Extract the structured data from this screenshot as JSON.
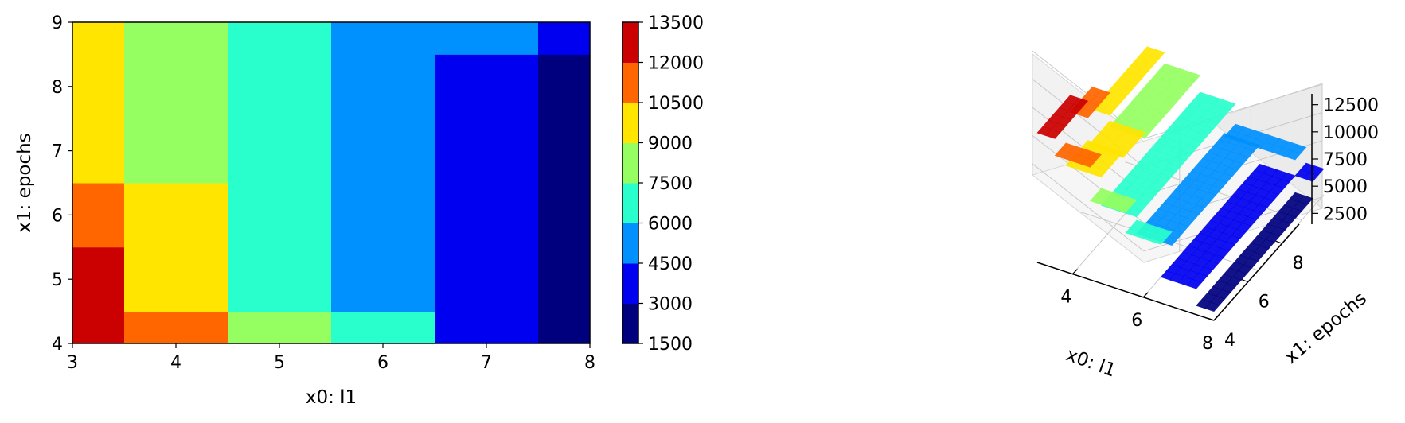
{
  "chart_data": [
    {
      "type": "heatmap",
      "subtype": "filled-contour",
      "title": "",
      "xlabel": "x0: l1",
      "ylabel": "x1: epochs",
      "xlim": [
        3,
        8
      ],
      "ylim": [
        4,
        9
      ],
      "xticks": [
        "3",
        "4",
        "5",
        "6",
        "7",
        "8"
      ],
      "yticks": [
        "4",
        "5",
        "6",
        "7",
        "8",
        "9"
      ],
      "colormap": "jet",
      "levels": [
        1500,
        3000,
        4500,
        6000,
        7500,
        9000,
        10500,
        12000,
        13500
      ],
      "level_colors": [
        "#00007f",
        "#0000f1",
        "#0091ff",
        "#29ffcd",
        "#95ff62",
        "#ffe500",
        "#ff6600",
        "#cb0000"
      ],
      "colorbar_ticks": [
        "1500",
        "3000",
        "4500",
        "6000",
        "7500",
        "9000",
        "10500",
        "12000",
        "13500"
      ],
      "x_grid": [
        3,
        4,
        5,
        6,
        7,
        8
      ],
      "y_grid": [
        4,
        5,
        6,
        7,
        8,
        9
      ],
      "z": [
        [
          13000,
          11500,
          8500,
          6700,
          3800,
          2300
        ],
        [
          13000,
          9500,
          7000,
          5500,
          3800,
          2300
        ],
        [
          11500,
          9000,
          7000,
          5500,
          3800,
          2300
        ],
        [
          9500,
          8500,
          7000,
          5500,
          3800,
          2300
        ],
        [
          9500,
          8500,
          7000,
          5500,
          3800,
          2300
        ],
        [
          9500,
          8500,
          7000,
          5200,
          5200,
          3800
        ]
      ]
    },
    {
      "type": "surface3d",
      "title": "",
      "xlabel": "x0: l1",
      "ylabel": "x1: epochs",
      "xticks": [
        "4",
        "6",
        "8"
      ],
      "yticks": [
        "4",
        "6",
        "8"
      ],
      "zticks": [
        "2500",
        "5000",
        "7500",
        "10000",
        "12500"
      ],
      "zlim": [
        1500,
        13500
      ],
      "colormap": "jet",
      "grid": true
    }
  ]
}
